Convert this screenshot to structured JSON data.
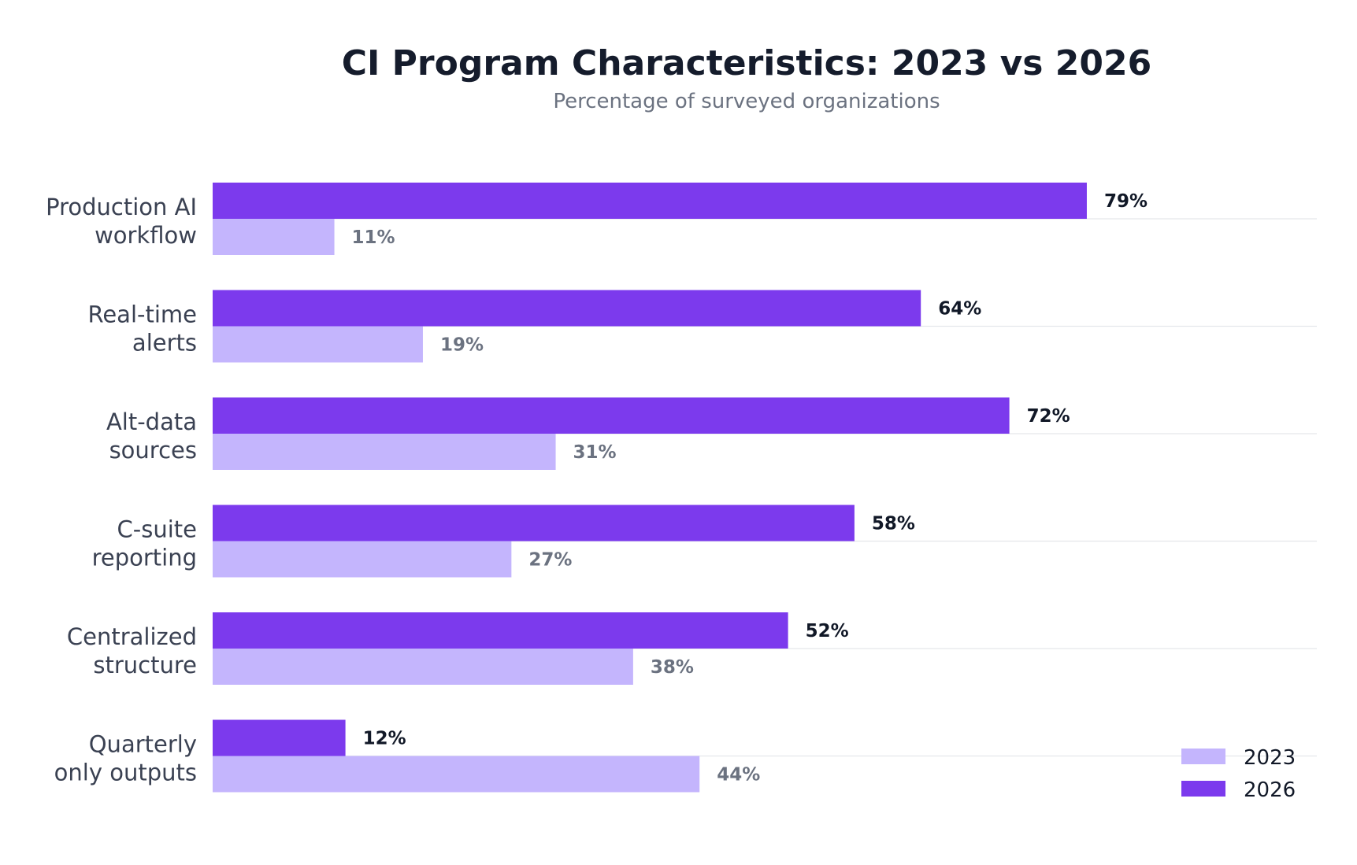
{
  "chart_data": {
    "type": "bar",
    "orientation": "horizontal",
    "title": "CI Program Characteristics: 2023 vs 2026",
    "subtitle": "Percentage of surveyed organizations",
    "categories": [
      [
        "Production AI",
        "workflow"
      ],
      [
        "Real-time",
        "alerts"
      ],
      [
        "Alt-data",
        "sources"
      ],
      [
        "C-suite",
        "reporting"
      ],
      [
        "Centralized",
        "structure"
      ],
      [
        "Quarterly",
        "only outputs"
      ]
    ],
    "series": [
      {
        "name": "2026",
        "values": [
          79,
          64,
          72,
          58,
          52,
          12
        ],
        "labels": [
          "79%",
          "64%",
          "72%",
          "58%",
          "52%",
          "12%"
        ],
        "color": "#7c3aed"
      },
      {
        "name": "2023",
        "values": [
          11,
          19,
          31,
          27,
          38,
          44
        ],
        "labels": [
          "11%",
          "19%",
          "31%",
          "27%",
          "38%",
          "44%"
        ],
        "color": "#c4b5fd"
      }
    ],
    "xlim": [
      0,
      100
    ],
    "grid": true,
    "legend": {
      "position": "bottom-right",
      "entries": [
        {
          "name": "2023",
          "color": "#c4b5fd"
        },
        {
          "name": "2026",
          "color": "#7c3aed"
        }
      ]
    }
  }
}
